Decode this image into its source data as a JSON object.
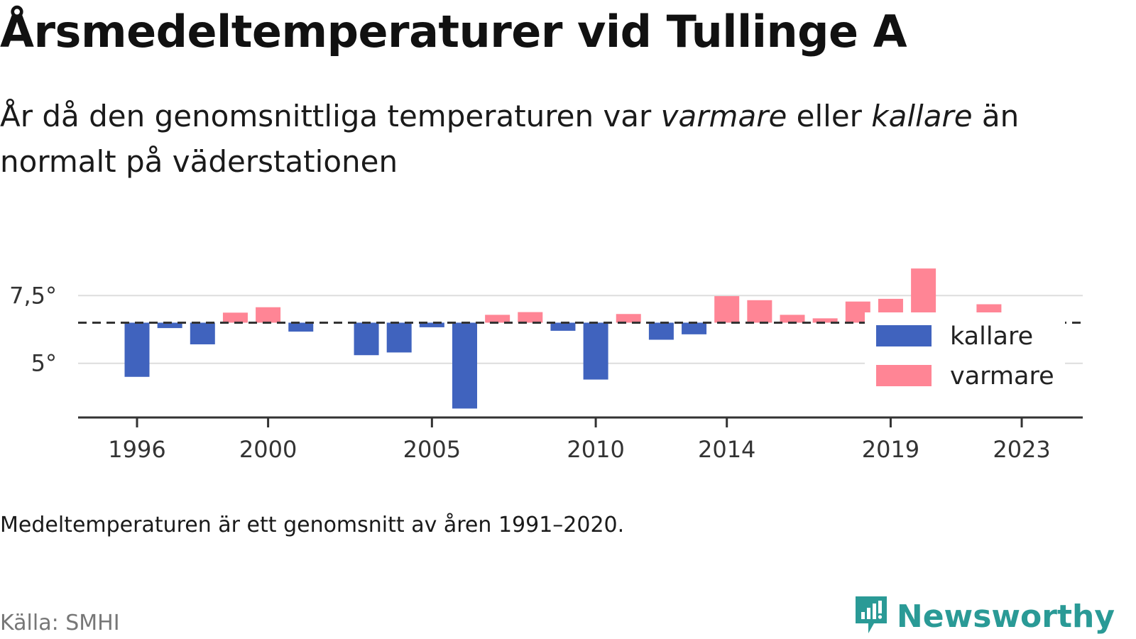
{
  "title": "Årsmedeltemperaturer vid Tullinge A",
  "subtitle": {
    "part1": "År då den genomsnittliga temperaturen var ",
    "warm_word": "varmare",
    "part2": " eller ",
    "cold_word": "kallare",
    "part3": " än normalt på väderstationen"
  },
  "note": "Medeltemperaturen är ett genomsnitt av åren 1991–2020.",
  "source": "Källa: SMHI",
  "brand": {
    "name": "Newsworthy",
    "icon": "newsworthy-logo-icon",
    "color": "#2a9a96"
  },
  "chart_data": {
    "type": "bar",
    "baseline": 6.5,
    "ylim": [
      3.0,
      9.5
    ],
    "yticks": [
      {
        "value": 5.0,
        "label": "5°"
      },
      {
        "value": 7.5,
        "label": "7,5°"
      }
    ],
    "xticks": [
      {
        "year": 1996,
        "label": "1996"
      },
      {
        "year": 2000,
        "label": "2000"
      },
      {
        "year": 2005,
        "label": "2005"
      },
      {
        "year": 2010,
        "label": "2010"
      },
      {
        "year": 2014,
        "label": "2014"
      },
      {
        "year": 2019,
        "label": "2019"
      },
      {
        "year": 2023,
        "label": "2023"
      }
    ],
    "colors": {
      "kallare": "#4063be",
      "varmare": "#ff8595"
    },
    "legend": [
      {
        "key": "kallare",
        "label": "kallare"
      },
      {
        "key": "varmare",
        "label": "varmare"
      }
    ],
    "legend_position": "right",
    "years": [
      1996,
      1997,
      1998,
      1999,
      2000,
      2001,
      2002,
      2003,
      2004,
      2005,
      2006,
      2007,
      2008,
      2009,
      2010,
      2011,
      2012,
      2013,
      2014,
      2015,
      2016,
      2017,
      2018,
      2019,
      2020,
      2021,
      2022,
      2023
    ],
    "values": [
      4.5,
      6.3,
      5.7,
      6.87,
      7.07,
      6.17,
      null,
      5.3,
      5.4,
      6.33,
      3.33,
      6.79,
      6.89,
      6.2,
      4.4,
      6.82,
      5.87,
      6.07,
      7.48,
      7.33,
      6.79,
      6.66,
      7.28,
      7.38,
      8.5,
      6.55,
      7.18,
      6.6
    ]
  }
}
